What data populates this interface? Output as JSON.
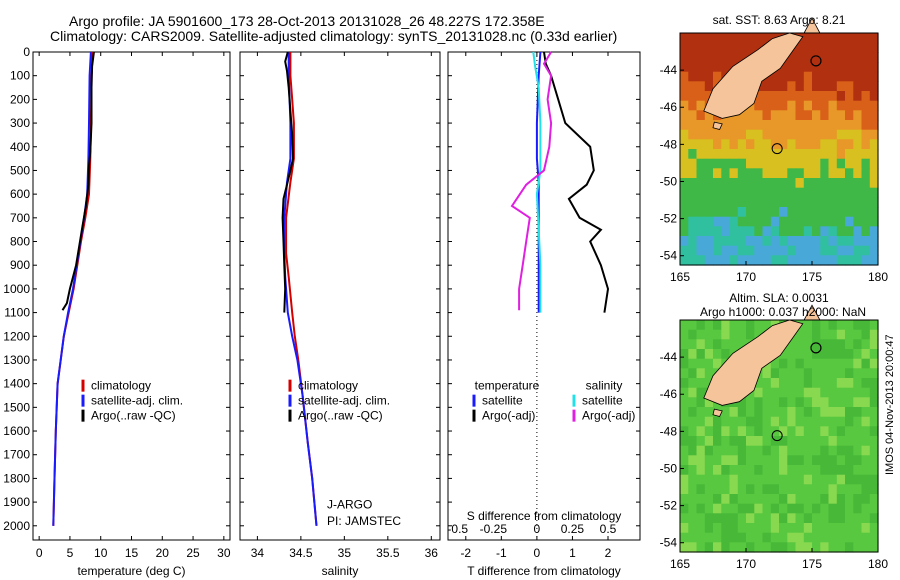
{
  "header": {
    "line1": "Argo profile: JA 5901600_173 28-Oct-2013 20131028_26 48.227S 172.358E",
    "line2": "Climatology: CARS2009. Satellite-adjusted climatology: synTS_20131028.nc (0.33d earlier)"
  },
  "side_text": "IMOS 04-Nov-2013 20:00:47",
  "colors": {
    "climatology": "#d40000",
    "satellite": "#1a1aff",
    "argo": "#000000",
    "satellite_s": "#22e0e8",
    "argo_s": "#e020e0"
  },
  "chart_data": [
    {
      "type": "line",
      "xlabel": "temperature (deg C)",
      "xlim": [
        -1,
        31
      ],
      "xticks": [
        0,
        5,
        10,
        15,
        20,
        25,
        30
      ],
      "ylim": [
        0,
        2060
      ],
      "yticks": [
        0,
        100,
        200,
        300,
        400,
        500,
        600,
        700,
        800,
        900,
        1000,
        1100,
        1200,
        1300,
        1400,
        1500,
        1600,
        1700,
        1800,
        1900,
        2000
      ],
      "legend": {
        "position": "center",
        "entries": [
          "climatology",
          "satellite-adj. clim.",
          "Argo(..raw -QC)"
        ]
      },
      "series": [
        {
          "name": "climatology",
          "color": "#d40000",
          "points": [
            [
              8.7,
              0
            ],
            [
              8.5,
              100
            ],
            [
              8.4,
              300
            ],
            [
              8.3,
              450
            ],
            [
              8.1,
              600
            ],
            [
              7.5,
              700
            ],
            [
              6.8,
              800
            ],
            [
              6.2,
              900
            ],
            [
              5.6,
              1000
            ],
            [
              4.8,
              1100
            ],
            [
              4.0,
              1200
            ],
            [
              3.5,
              1300
            ],
            [
              3.0,
              1400
            ],
            [
              2.7,
              1600
            ],
            [
              2.5,
              1800
            ],
            [
              2.3,
              2000
            ]
          ]
        },
        {
          "name": "satellite-adj. clim.",
          "color": "#1a1aff",
          "points": [
            [
              8.4,
              0
            ],
            [
              8.2,
              100
            ],
            [
              8.1,
              300
            ],
            [
              8.0,
              450
            ],
            [
              7.8,
              600
            ],
            [
              7.3,
              700
            ],
            [
              6.7,
              800
            ],
            [
              6.1,
              900
            ],
            [
              5.5,
              1000
            ],
            [
              4.7,
              1100
            ],
            [
              4.0,
              1200
            ],
            [
              3.5,
              1300
            ],
            [
              3.0,
              1400
            ],
            [
              2.7,
              1600
            ],
            [
              2.5,
              1800
            ],
            [
              2.3,
              2000
            ]
          ]
        },
        {
          "name": "Argo(..raw -QC)",
          "color": "#000000",
          "points": [
            [
              8.9,
              0
            ],
            [
              8.6,
              60
            ],
            [
              8.5,
              150
            ],
            [
              8.5,
              300
            ],
            [
              8.3,
              420
            ],
            [
              8.1,
              480
            ],
            [
              8.0,
              560
            ],
            [
              7.6,
              650
            ],
            [
              7.0,
              740
            ],
            [
              6.5,
              820
            ],
            [
              6.0,
              900
            ],
            [
              5.0,
              1000
            ],
            [
              4.5,
              1060
            ],
            [
              3.8,
              1090
            ]
          ]
        }
      ]
    },
    {
      "type": "line",
      "xlabel": "salinity",
      "xlim": [
        33.8,
        36.1
      ],
      "xticks": [
        34,
        34.5,
        35,
        35.5,
        36
      ],
      "ylim": [
        0,
        2060
      ],
      "legend": {
        "position": "center",
        "entries": [
          "climatology",
          "satellite-adj. clim.",
          "Argo(..raw -QC)"
        ]
      },
      "annotation": [
        "J-ARGO",
        "PI: JAMSTEC"
      ],
      "series": [
        {
          "name": "climatology",
          "color": "#d40000",
          "points": [
            [
              34.38,
              0
            ],
            [
              34.38,
              100
            ],
            [
              34.4,
              200
            ],
            [
              34.42,
              300
            ],
            [
              34.42,
              450
            ],
            [
              34.38,
              550
            ],
            [
              34.33,
              700
            ],
            [
              34.33,
              850
            ],
            [
              34.36,
              950
            ],
            [
              34.4,
              1100
            ],
            [
              34.43,
              1200
            ],
            [
              34.47,
              1300
            ],
            [
              34.52,
              1450
            ],
            [
              34.58,
              1650
            ],
            [
              34.63,
              1800
            ],
            [
              34.68,
              2000
            ]
          ]
        },
        {
          "name": "satellite-adj. clim.",
          "color": "#1a1aff",
          "points": [
            [
              34.36,
              0
            ],
            [
              34.36,
              100
            ],
            [
              34.37,
              200
            ],
            [
              34.38,
              300
            ],
            [
              34.38,
              450
            ],
            [
              34.34,
              550
            ],
            [
              34.31,
              700
            ],
            [
              34.31,
              850
            ],
            [
              34.32,
              950
            ],
            [
              34.35,
              1100
            ],
            [
              34.4,
              1200
            ],
            [
              34.46,
              1300
            ],
            [
              34.52,
              1450
            ],
            [
              34.58,
              1650
            ],
            [
              34.63,
              1800
            ],
            [
              34.68,
              2000
            ]
          ]
        },
        {
          "name": "Argo(..raw -QC)",
          "color": "#000000",
          "points": [
            [
              34.35,
              0
            ],
            [
              34.32,
              40
            ],
            [
              34.34,
              80
            ],
            [
              34.36,
              150
            ],
            [
              34.38,
              250
            ],
            [
              34.4,
              350
            ],
            [
              34.41,
              450
            ],
            [
              34.38,
              500
            ],
            [
              34.34,
              560
            ],
            [
              34.3,
              620
            ],
            [
              34.29,
              700
            ],
            [
              34.3,
              800
            ],
            [
              34.31,
              900
            ],
            [
              34.32,
              1000
            ],
            [
              34.31,
              1100
            ]
          ]
        }
      ]
    },
    {
      "type": "line",
      "xlabel": "T difference from climatology",
      "xlabel2": "S difference from climatology",
      "xlim": [
        -2.5,
        2.9
      ],
      "xticks": [
        -2,
        -1,
        0,
        1,
        2
      ],
      "x2ticks": [
        "-0.5",
        "-0.25",
        "0",
        "0.25",
        "0.5"
      ],
      "ylim": [
        0,
        2060
      ],
      "legend": {
        "position": "center",
        "headers": [
          "temperature",
          "salinity"
        ],
        "entries": [
          "satellite",
          "Argo(-adj)",
          "satellite",
          "Argo(-adj)"
        ]
      },
      "series": [
        {
          "name": "satellite",
          "color": "#1a1aff",
          "points": [
            [
              0.1,
              0
            ],
            [
              0.05,
              100
            ],
            [
              0.0,
              300
            ],
            [
              0.0,
              450
            ],
            [
              0.05,
              550
            ],
            [
              0.05,
              650
            ],
            [
              0.05,
              800
            ],
            [
              0.05,
              950
            ],
            [
              0.05,
              1100
            ]
          ]
        },
        {
          "name": "Argo(-adj)",
          "color": "#000000",
          "points": [
            [
              0.2,
              0
            ],
            [
              0.25,
              50
            ],
            [
              0.4,
              100
            ],
            [
              0.6,
              200
            ],
            [
              0.8,
              300
            ],
            [
              1.5,
              400
            ],
            [
              1.6,
              500
            ],
            [
              1.4,
              560
            ],
            [
              0.9,
              620
            ],
            [
              1.2,
              700
            ],
            [
              1.8,
              750
            ],
            [
              1.5,
              800
            ],
            [
              1.8,
              900
            ],
            [
              2.0,
              1000
            ],
            [
              1.9,
              1100
            ]
          ]
        },
        {
          "name": "satellite",
          "color": "#22e0e8",
          "points": [
            [
              -0.1,
              0
            ],
            [
              -0.05,
              60
            ],
            [
              0.05,
              150
            ],
            [
              0.1,
              300
            ],
            [
              0.1,
              500
            ],
            [
              0.0,
              600
            ],
            [
              0.05,
              750
            ],
            [
              0.1,
              900
            ],
            [
              0.1,
              1100
            ]
          ]
        },
        {
          "name": "Argo(-adj)",
          "color": "#e020e0",
          "points": [
            [
              0.4,
              0
            ],
            [
              0.2,
              50
            ],
            [
              0.4,
              100
            ],
            [
              0.3,
              200
            ],
            [
              0.4,
              300
            ],
            [
              0.35,
              400
            ],
            [
              0.2,
              500
            ],
            [
              -0.3,
              560
            ],
            [
              -0.7,
              650
            ],
            [
              -0.2,
              700
            ],
            [
              -0.3,
              800
            ],
            [
              -0.4,
              900
            ],
            [
              -0.5,
              1000
            ],
            [
              -0.5,
              1090
            ]
          ]
        }
      ]
    },
    {
      "type": "heatmap",
      "title": "sat. SST: 8.63 Argo: 8.21",
      "xlim": [
        165,
        180
      ],
      "xticks": [
        165,
        170,
        175,
        180
      ],
      "ylim": [
        -54.5,
        -42
      ],
      "yticks": [
        -44,
        -46,
        -48,
        -50,
        -52,
        -54
      ]
    },
    {
      "type": "heatmap",
      "title": "Altim. SLA: 0.0031",
      "title2": "Argo h1000: 0.037 h2000: NaN",
      "xlim": [
        165,
        180
      ],
      "xticks": [
        165,
        170,
        175,
        180
      ],
      "ylim": [
        -54.5,
        -42
      ],
      "yticks": [
        -44,
        -46,
        -48,
        -50,
        -52,
        -54
      ]
    }
  ]
}
